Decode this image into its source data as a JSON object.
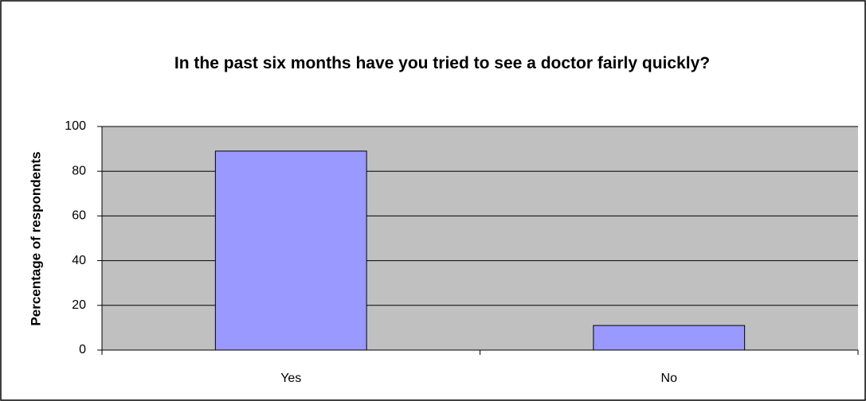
{
  "chart_data": {
    "type": "bar",
    "title": "In the past six months have you tried to see a doctor fairly quickly?",
    "y_label": "Percentage of respondents",
    "categories": [
      "Yes",
      "No"
    ],
    "values": [
      89,
      11
    ],
    "color": "#9999ff",
    "ylim": [
      0,
      100
    ],
    "yticks": [
      0,
      20,
      40,
      60,
      80,
      100
    ],
    "grid": true
  }
}
